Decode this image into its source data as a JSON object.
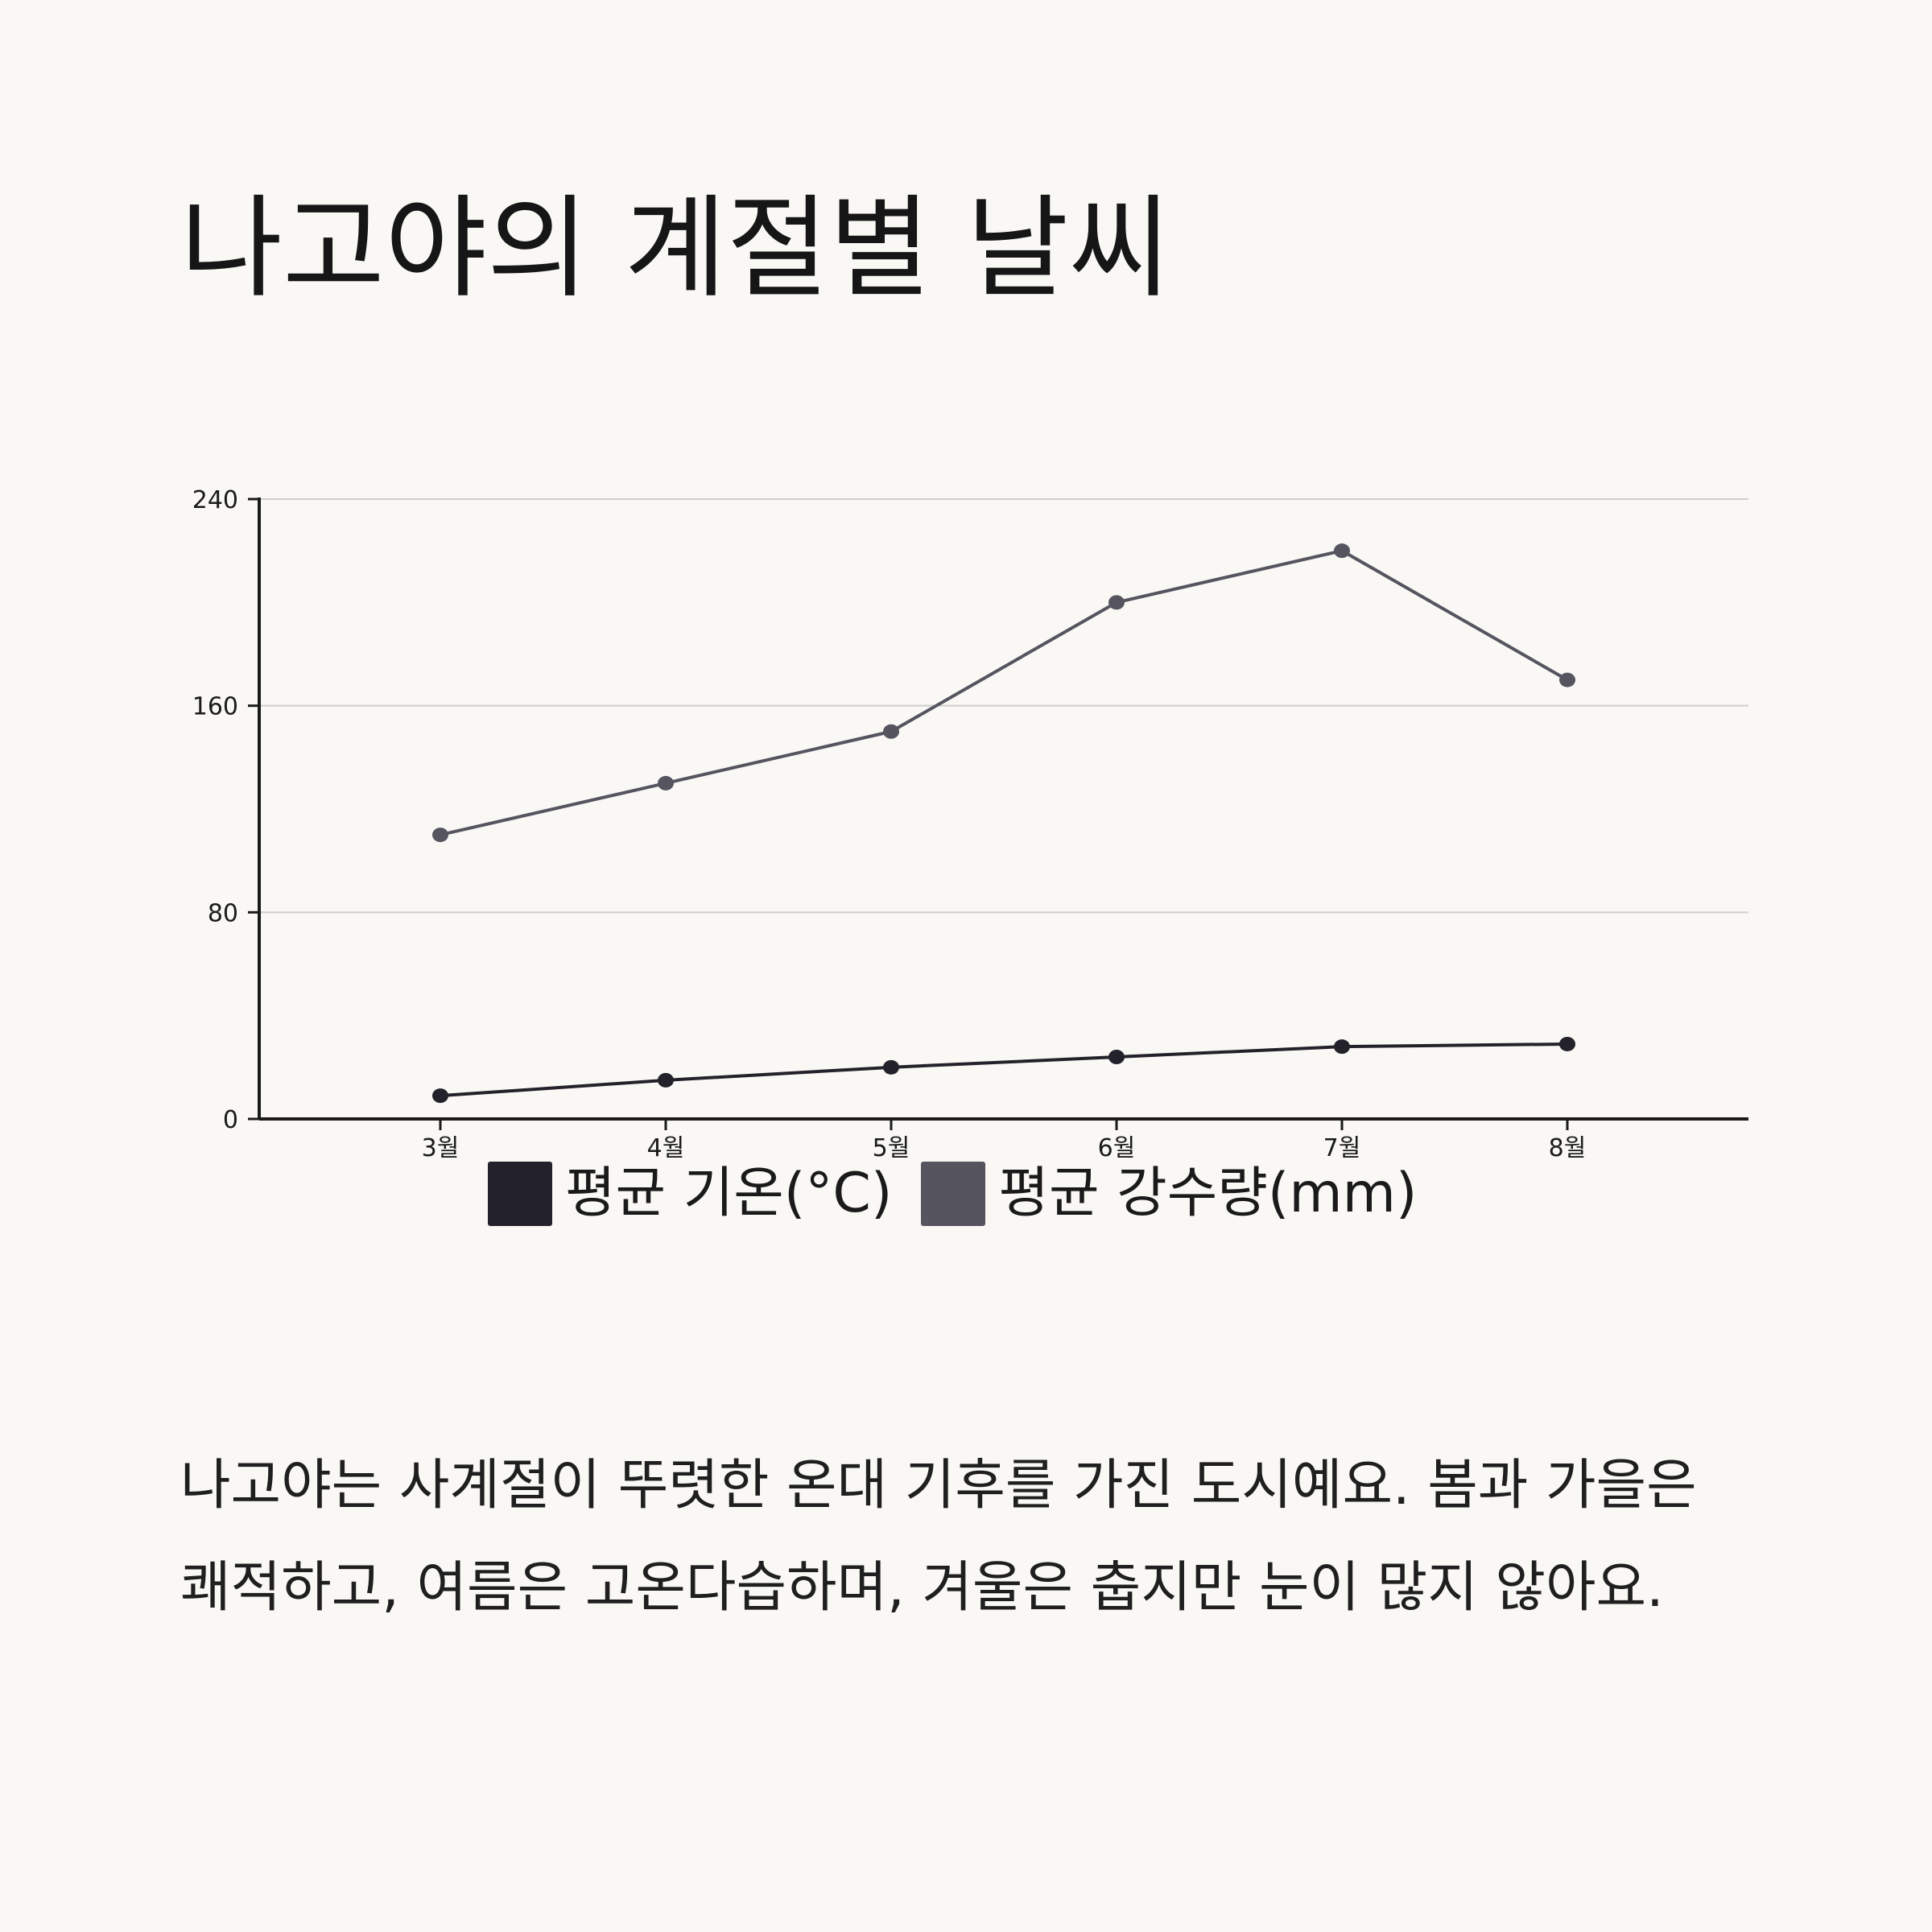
{
  "page": {
    "title": "나고야의 계절별 날씨",
    "description": "나고야는 사계절이 뚜렷한 온대 기후를 가진 도시예요. 봄과 가을은 쾌적하고, 여름은 고온다습하며, 겨울은 춥지만 눈이 많지 않아요."
  },
  "colors": {
    "background": "#f9f8f5",
    "temperature": "#23222a",
    "precipitation": "#55545f",
    "grid": "#cfcfcf",
    "axis": "#1a1a1a"
  },
  "chart_data": {
    "type": "line",
    "title": "",
    "xlabel": "",
    "ylabel": "",
    "categories": [
      "3월",
      "4월",
      "5월",
      "6월",
      "7월",
      "8월"
    ],
    "series": [
      {
        "name": "평균 기온(°C)",
        "values": [
          9,
          15,
          20,
          24,
          28,
          29
        ]
      },
      {
        "name": "평균 강수량(mm)",
        "values": [
          110,
          130,
          150,
          200,
          220,
          170
        ]
      }
    ],
    "ylim": [
      0,
      240
    ],
    "yticks": [
      "0",
      "80",
      "160",
      "240"
    ],
    "grid": true,
    "legend": "bottom"
  }
}
